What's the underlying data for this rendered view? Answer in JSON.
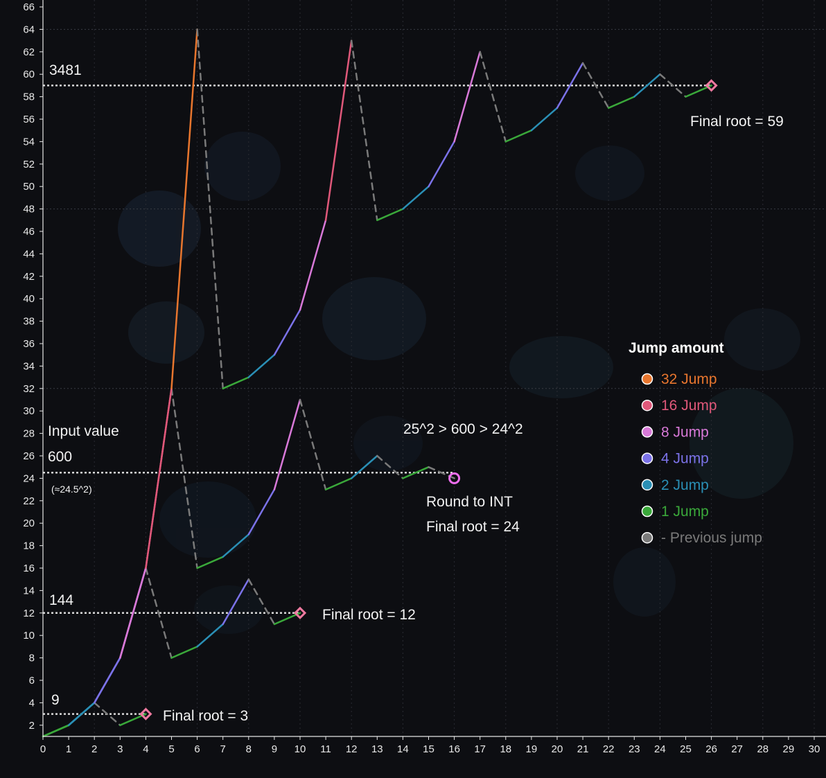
{
  "chart_data": {
    "type": "line",
    "xlim": [
      0,
      30
    ],
    "ylim": [
      1,
      66
    ],
    "x_ticks": [
      0,
      1,
      2,
      3,
      4,
      5,
      6,
      7,
      8,
      9,
      10,
      11,
      12,
      13,
      14,
      15,
      16,
      17,
      18,
      19,
      20,
      21,
      22,
      23,
      24,
      25,
      26,
      27,
      28,
      29,
      30
    ],
    "y_ticks": [
      2,
      4,
      6,
      8,
      10,
      12,
      14,
      16,
      18,
      20,
      22,
      24,
      26,
      28,
      30,
      32,
      34,
      36,
      38,
      40,
      42,
      44,
      46,
      48,
      50,
      52,
      54,
      56,
      58,
      60,
      62,
      64,
      66
    ],
    "grid": true,
    "colors": {
      "32": "#e8762e",
      "16": "#e0587a",
      "8": "#d879d8",
      "4": "#7b72e8",
      "2": "#2a8fb5",
      "1": "#3aa83a",
      "prev": "#7a7a7a"
    },
    "paths": [
      {
        "name": "9",
        "points": [
          [
            0,
            1
          ],
          [
            1,
            2
          ],
          [
            2,
            4
          ],
          [
            3,
            2
          ],
          [
            4,
            3
          ]
        ],
        "jumps": [
          "1",
          "2",
          "prev",
          "1"
        ]
      },
      {
        "name": "144",
        "points": [
          [
            0,
            1
          ],
          [
            1,
            2
          ],
          [
            2,
            4
          ],
          [
            3,
            8
          ],
          [
            4,
            16
          ],
          [
            5,
            8
          ],
          [
            6,
            9
          ],
          [
            7,
            11
          ],
          [
            8,
            15
          ],
          [
            9,
            11
          ],
          [
            10,
            12
          ]
        ],
        "jumps": [
          "1",
          "2",
          "4",
          "8",
          "prev",
          "1",
          "2",
          "4",
          "prev",
          "1"
        ]
      },
      {
        "name": "600",
        "points": [
          [
            0,
            1
          ],
          [
            1,
            2
          ],
          [
            2,
            4
          ],
          [
            3,
            8
          ],
          [
            4,
            16
          ],
          [
            5,
            32
          ],
          [
            6,
            16
          ],
          [
            7,
            17
          ],
          [
            8,
            19
          ],
          [
            9,
            23
          ],
          [
            10,
            31
          ],
          [
            11,
            23
          ],
          [
            12,
            24
          ],
          [
            13,
            26
          ],
          [
            14,
            24
          ],
          [
            15,
            25
          ],
          [
            16,
            24
          ]
        ],
        "jumps": [
          "1",
          "2",
          "4",
          "8",
          "16",
          "prev",
          "1",
          "2",
          "4",
          "8",
          "prev",
          "1",
          "2",
          "prev",
          "1",
          "prev"
        ]
      },
      {
        "name": "3481",
        "points": [
          [
            0,
            1
          ],
          [
            1,
            2
          ],
          [
            2,
            4
          ],
          [
            3,
            8
          ],
          [
            4,
            16
          ],
          [
            5,
            32
          ],
          [
            6,
            64
          ],
          [
            7,
            32
          ],
          [
            8,
            33
          ],
          [
            9,
            35
          ],
          [
            10,
            39
          ],
          [
            11,
            47
          ],
          [
            12,
            63
          ],
          [
            13,
            47
          ],
          [
            14,
            48
          ],
          [
            15,
            50
          ],
          [
            16,
            54
          ],
          [
            17,
            62
          ],
          [
            18,
            54
          ],
          [
            19,
            55
          ],
          [
            20,
            57
          ],
          [
            21,
            61
          ],
          [
            22,
            57
          ],
          [
            23,
            58
          ],
          [
            24,
            60
          ],
          [
            25,
            58
          ],
          [
            26,
            59
          ]
        ],
        "jumps": [
          "1",
          "2",
          "4",
          "8",
          "16",
          "32",
          "prev",
          "1",
          "2",
          "4",
          "8",
          "16",
          "prev",
          "1",
          "2",
          "4",
          "8",
          "prev",
          "1",
          "2",
          "4",
          "prev",
          "1",
          "2",
          "prev",
          "1"
        ]
      }
    ],
    "references": [
      {
        "label": "9",
        "y": 3,
        "x_end": 4
      },
      {
        "label": "144",
        "y": 12,
        "x_end": 10
      },
      {
        "label": "600",
        "y": 24.5,
        "x_end": 16
      },
      {
        "label": "3481",
        "y": 59,
        "x_end": 26
      }
    ],
    "final_markers": [
      {
        "x": 4,
        "y": 3,
        "shape": "diamond"
      },
      {
        "x": 10,
        "y": 12,
        "shape": "diamond"
      },
      {
        "x": 16,
        "y": 24,
        "shape": "circle"
      },
      {
        "x": 26,
        "y": 59,
        "shape": "diamond"
      }
    ],
    "annotations": {
      "final_3": "Final root = 3",
      "final_12": "Final root = 12",
      "input_value": "Input value",
      "approx": "(≈24.5^2)",
      "ineq": "25^2 > 600 > 24^2",
      "round": "Round to INT",
      "final_24": "Final root = 24",
      "final_59": "Final root = 59"
    },
    "legend": {
      "title": "Jump amount",
      "placement": "right",
      "items": [
        {
          "label": "32 Jump",
          "key": "32"
        },
        {
          "label": "16 Jump",
          "key": "16"
        },
        {
          "label": "8 Jump",
          "key": "8"
        },
        {
          "label": "4 Jump",
          "key": "4"
        },
        {
          "label": "2 Jump",
          "key": "2"
        },
        {
          "label": "1 Jump",
          "key": "1"
        },
        {
          "label": "- Previous jump",
          "key": "prev"
        }
      ]
    }
  }
}
